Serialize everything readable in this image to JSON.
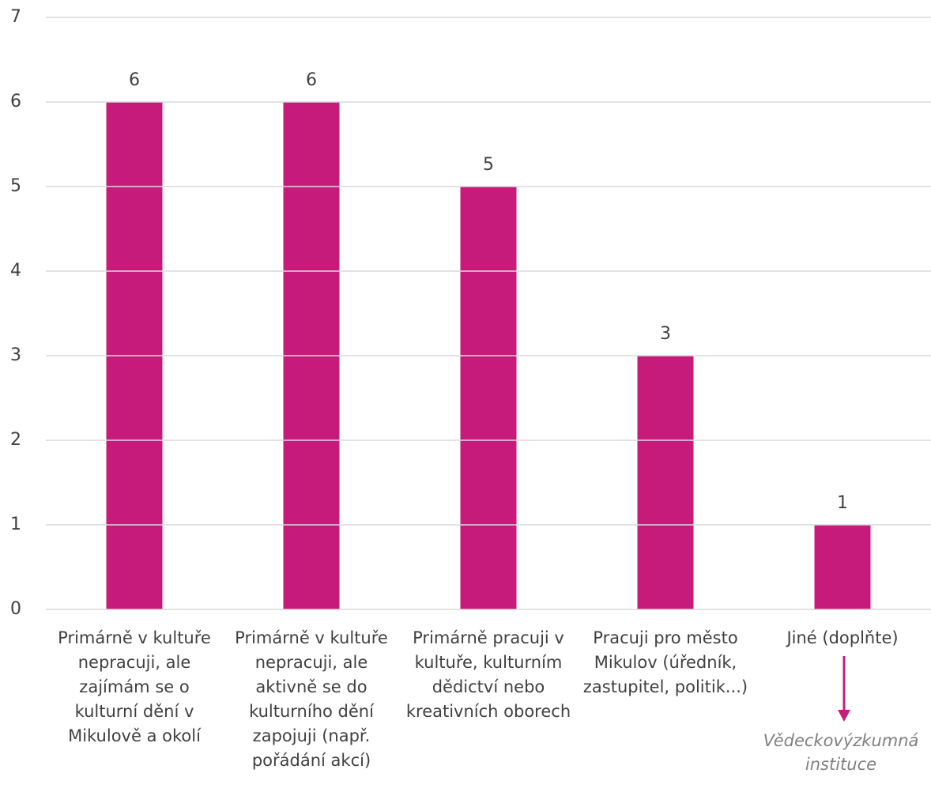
{
  "chart_data": {
    "type": "bar",
    "categories": [
      "Primárně v kultuře nepracuji, ale zajímám se o kulturní dění v Mikulově a okolí",
      "Primárně v kultuře nepracuji, ale aktivně se do kulturního dění zapojuji (např. pořádání akcí)",
      "Primárně pracuji v kultuře, kulturním dědictví nebo kreativních oborech",
      "Pracuji pro město Mikulov (úředník, zastupitel, politik...)",
      "Jiné (doplňte)"
    ],
    "values": [
      6,
      6,
      5,
      3,
      1
    ],
    "color": "#c71b7b",
    "ylim": [
      0,
      7
    ],
    "yticks": [
      0,
      1,
      2,
      3,
      4,
      5,
      6,
      7
    ],
    "grid": true,
    "annotation": "Vědeckovýzkumná instituce"
  }
}
